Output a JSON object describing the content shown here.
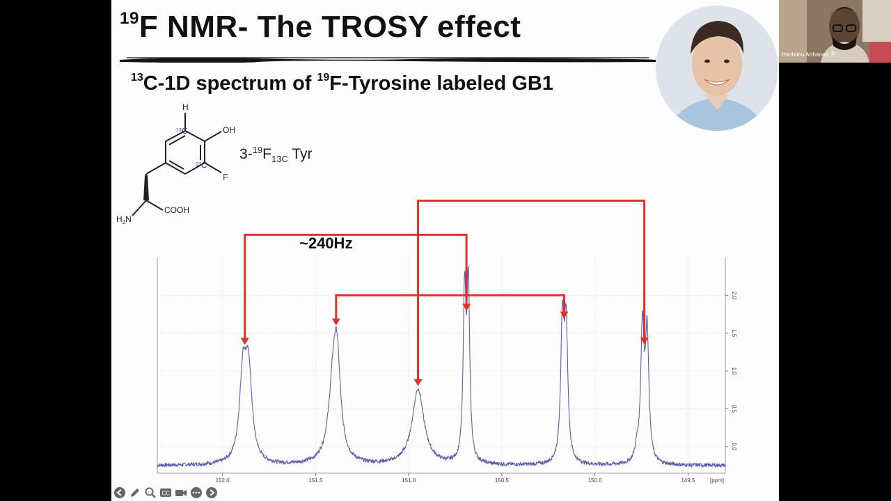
{
  "slide": {
    "title_sup": "19",
    "title_main": "F NMR- The TROSY effect",
    "subtitle_sup1": "13",
    "subtitle_part1": "C-1D spectrum of ",
    "subtitle_sup2": "19",
    "subtitle_part2": "F-Tyrosine labeled GB1",
    "label_prefix": "3-",
    "label_sup": "19",
    "label_F": "F",
    "label_sub": "13C",
    "label_suffix": " Tyr",
    "coupling_label": "~240Hz",
    "molecule": {
      "H": "H",
      "OH": "OH",
      "C13_sup": "13",
      "C": "C",
      "F": "F",
      "COOH": "COOH",
      "H2N_H": "H",
      "H2N_sub": "2",
      "H2N_N": "N"
    }
  },
  "colors": {
    "arrow": "#e0302a",
    "spectrum": "#5a5fa8",
    "fluorine": "#8a2a7a",
    "carbon_label": "#2a3f7a"
  },
  "chart_data": {
    "type": "line",
    "xlabel": "[ppm]",
    "x_reversed": true,
    "xlim": [
      152.35,
      149.3
    ],
    "ylim": [
      -0.35,
      2.5
    ],
    "x_ticks": [
      "152.0",
      "151.5",
      "151.0",
      "150.5",
      "150.0",
      "149.5"
    ],
    "x_tick_values": [
      152.0,
      151.5,
      151.0,
      150.5,
      150.0,
      149.5
    ],
    "y_ticks": [
      "0.0",
      "0.5",
      "1.0",
      "1.5",
      "2.0"
    ],
    "y_tick_values": [
      0.0,
      0.5,
      1.0,
      1.5,
      2.0
    ],
    "baseline": -0.25,
    "peaks": [
      {
        "center": 151.89,
        "height": 1.13,
        "width": 0.022
      },
      {
        "center": 151.86,
        "height": 1.12,
        "width": 0.022
      },
      {
        "center": 151.405,
        "height": 0.98,
        "width": 0.03
      },
      {
        "center": 151.385,
        "height": 1.07,
        "width": 0.022
      },
      {
        "center": 150.95,
        "height": 1.0,
        "width": 0.038
      },
      {
        "center": 150.7,
        "height": 2.18,
        "width": 0.009
      },
      {
        "center": 150.68,
        "height": 2.25,
        "width": 0.009
      },
      {
        "center": 150.175,
        "height": 1.75,
        "width": 0.011
      },
      {
        "center": 150.155,
        "height": 1.72,
        "width": 0.011
      },
      {
        "center": 149.745,
        "height": 1.75,
        "width": 0.011
      },
      {
        "center": 149.72,
        "height": 1.68,
        "width": 0.011
      },
      {
        "center": 149.775,
        "height": 0.15,
        "width": 0.012
      }
    ]
  },
  "arrows": [
    {
      "from_x": 151.88,
      "to_x": 150.69,
      "bracket_y": 2.8
    },
    {
      "from_x": 151.39,
      "to_x": 150.165,
      "bracket_y": 2.0
    },
    {
      "from_x": 150.95,
      "to_x": 149.735,
      "bracket_y": 3.25
    }
  ],
  "toolbar": {
    "items": [
      "back-icon",
      "pen-icon",
      "zoom-icon",
      "cc-icon",
      "camera-icon",
      "more-icon",
      "forward-icon"
    ]
  },
  "video": {
    "participant_name": "Haribabu Arthanari, P..."
  }
}
